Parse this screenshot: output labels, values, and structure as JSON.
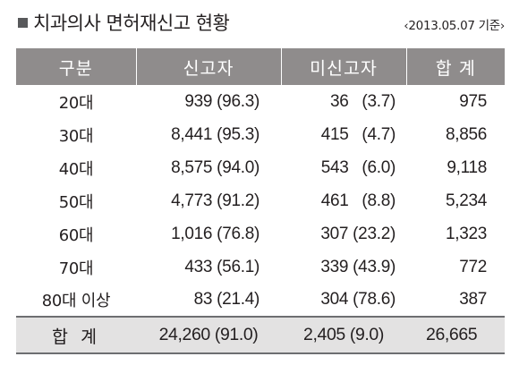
{
  "title": "치과의사 면허재신고 현황",
  "as_of": "‹2013.05.07 기준›",
  "columns": [
    "구분",
    "신고자",
    "미신고자",
    "합 계"
  ],
  "rows": [
    {
      "age": "20대",
      "reported": "939 (96.3)",
      "unreported": "36   (3.7)",
      "total": "975"
    },
    {
      "age": "30대",
      "reported": "8,441 (95.3)",
      "unreported": "415   (4.7)",
      "total": "8,856"
    },
    {
      "age": "40대",
      "reported": "8,575 (94.0)",
      "unreported": "543   (6.0)",
      "total": "9,118"
    },
    {
      "age": "50대",
      "reported": "4,773 (91.2)",
      "unreported": "461   (8.8)",
      "total": "5,234"
    },
    {
      "age": "60대",
      "reported": "1,016 (76.8)",
      "unreported": "307 (23.2)",
      "total": "1,323"
    },
    {
      "age": "70대",
      "reported": "433 (56.1)",
      "unreported": "339 (43.9)",
      "total": "772"
    },
    {
      "age": "80대 이상",
      "reported": "83 (21.4)",
      "unreported": "304 (78.6)",
      "total": "387"
    }
  ],
  "totals": {
    "label": "합 계",
    "reported": "24,260 (91.0)",
    "unreported": "2,405 (9.0)",
    "total": "26,665"
  },
  "colors": {
    "header_bg": "#8f8c8c",
    "total_row_bg": "#e3e2e2",
    "text": "#231f20",
    "bullet": "#58595b"
  }
}
